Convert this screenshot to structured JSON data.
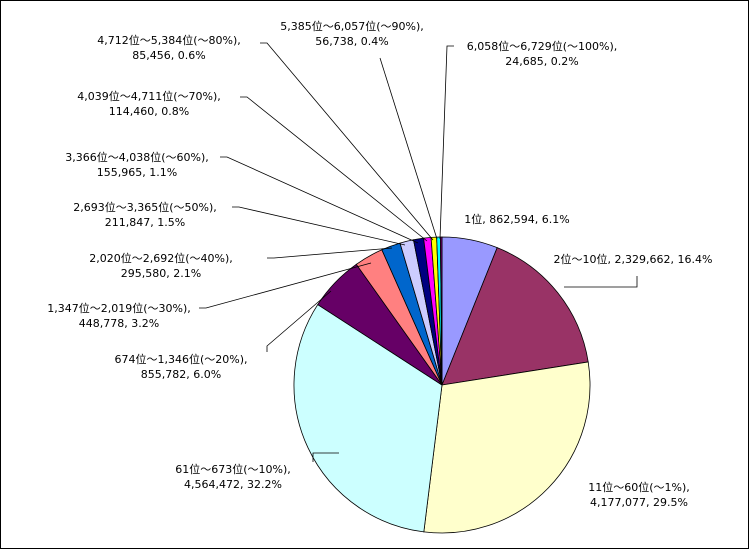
{
  "chart_data": {
    "type": "pie",
    "title": "",
    "legend": "none",
    "slices": [
      {
        "label": "1位",
        "value": 862594,
        "value_text": "862,594",
        "percent_text": "6.1%",
        "color": "#9999FF"
      },
      {
        "label": "2位～10位",
        "value": 2329662,
        "value_text": "2,329,662",
        "percent_text": "16.4%",
        "color": "#993366"
      },
      {
        "label": "11位～60位(～1%)",
        "value": 4177077,
        "value_text": "4,177,077",
        "percent_text": "29.5%",
        "color": "#FFFFCC"
      },
      {
        "label": "61位～673位(～10%)",
        "value": 4564472,
        "value_text": "4,564,472",
        "percent_text": "32.2%",
        "color": "#CCFFFF"
      },
      {
        "label": "674位～1,346位(～20%)",
        "value": 855782,
        "value_text": "855,782",
        "percent_text": "6.0%",
        "color": "#660066"
      },
      {
        "label": "1,347位～2,019位(～30%)",
        "value": 448778,
        "value_text": "448,778",
        "percent_text": "3.2%",
        "color": "#FF8080"
      },
      {
        "label": "2,020位～2,692位(～40%)",
        "value": 295580,
        "value_text": "295,580",
        "percent_text": "2.1%",
        "color": "#0066CC"
      },
      {
        "label": "2,693位～3,365位(～50%)",
        "value": 211847,
        "value_text": "211,847",
        "percent_text": "1.5%",
        "color": "#CCCCFF"
      },
      {
        "label": "3,366位～4,038位(～60%)",
        "value": 155965,
        "value_text": "155,965",
        "percent_text": "1.1%",
        "color": "#000080"
      },
      {
        "label": "4,039位～4,711位(～70%)",
        "value": 114460,
        "value_text": "114,460",
        "percent_text": "0.8%",
        "color": "#FF00FF"
      },
      {
        "label": "4,712位～5,384位(～80%)",
        "value": 85456,
        "value_text": "85,456",
        "percent_text": "0.6%",
        "color": "#FFFF00"
      },
      {
        "label": "5,385位～6,057位(～90%)",
        "value": 56738,
        "value_text": "56,738",
        "percent_text": "0.4%",
        "color": "#00FFFF"
      },
      {
        "label": "6,058位～6,729位(～100%)",
        "value": 24685,
        "value_text": "24,685",
        "percent_text": "0.2%",
        "color": "#800080"
      }
    ]
  }
}
